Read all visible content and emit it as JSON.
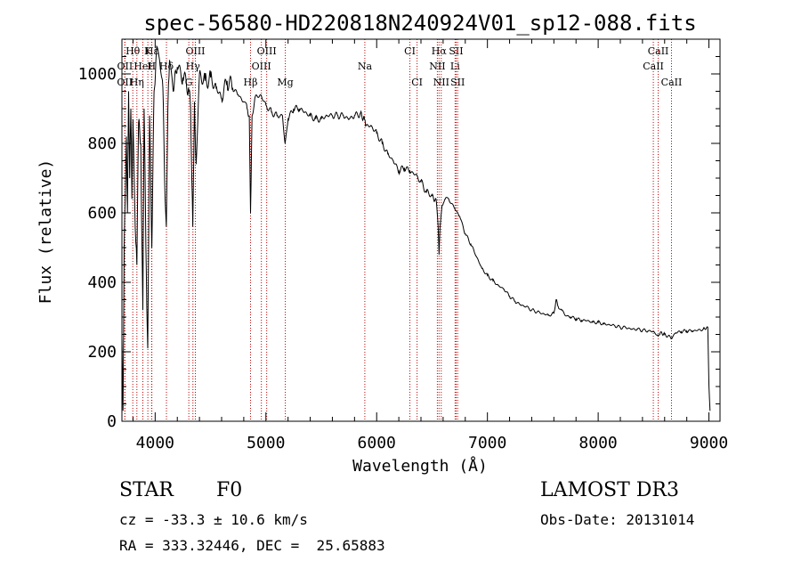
{
  "chart_data": {
    "type": "line",
    "title": "spec-56580-HD220818N240924V01_sp12-088.fits",
    "xlabel": "Wavelength (Å)",
    "ylabel": "Flux (relative)",
    "xlim": [
      3700,
      9100
    ],
    "ylim": [
      0,
      1100
    ],
    "xticks": [
      4000,
      5000,
      6000,
      7000,
      8000,
      9000
    ],
    "yticks": [
      0,
      200,
      400,
      600,
      800,
      1000
    ],
    "grid": false,
    "series": [
      {
        "name": "flux",
        "x": [
          3700,
          3710,
          3720,
          3730,
          3740,
          3750,
          3760,
          3770,
          3780,
          3790,
          3800,
          3820,
          3835,
          3850,
          3870,
          3889,
          3900,
          3920,
          3933,
          3950,
          3970,
          3990,
          4010,
          4040,
          4070,
          4090,
          4101,
          4115,
          4130,
          4160,
          4200,
          4250,
          4300,
          4320,
          4340,
          4355,
          4370,
          4400,
          4450,
          4500,
          4550,
          4600,
          4650,
          4700,
          4750,
          4800,
          4830,
          4850,
          4861,
          4875,
          4900,
          4950,
          5000,
          5050,
          5100,
          5150,
          5173,
          5200,
          5250,
          5300,
          5350,
          5400,
          5450,
          5500,
          5550,
          5600,
          5650,
          5700,
          5750,
          5800,
          5850,
          5890,
          5900,
          5950,
          6000,
          6050,
          6100,
          6150,
          6200,
          6250,
          6300,
          6350,
          6400,
          6450,
          6500,
          6540,
          6555,
          6563,
          6572,
          6590,
          6620,
          6650,
          6700,
          6750,
          6800,
          6850,
          6900,
          6950,
          7000,
          7050,
          7100,
          7150,
          7200,
          7250,
          7300,
          7350,
          7400,
          7450,
          7500,
          7550,
          7600,
          7620,
          7640,
          7670,
          7700,
          7750,
          7800,
          7850,
          7900,
          7950,
          8000,
          8050,
          8100,
          8150,
          8200,
          8250,
          8300,
          8350,
          8400,
          8450,
          8500,
          8540,
          8560,
          8600,
          8662,
          8700,
          8750,
          8800,
          8850,
          8900,
          8950,
          8990,
          9000,
          9010
        ],
        "values": [
          240,
          30,
          500,
          640,
          820,
          600,
          950,
          700,
          900,
          640,
          870,
          560,
          450,
          860,
          800,
          320,
          900,
          430,
          210,
          880,
          500,
          950,
          1060,
          1040,
          960,
          640,
          560,
          900,
          1040,
          960,
          1020,
          990,
          960,
          900,
          560,
          920,
          740,
          1000,
          980,
          990,
          960,
          930,
          980,
          960,
          940,
          920,
          900,
          880,
          600,
          880,
          930,
          940,
          910,
          890,
          880,
          880,
          800,
          870,
          900,
          900,
          890,
          880,
          870,
          870,
          880,
          880,
          880,
          880,
          870,
          880,
          885,
          870,
          850,
          850,
          830,
          800,
          770,
          750,
          720,
          730,
          720,
          710,
          690,
          660,
          650,
          630,
          560,
          480,
          560,
          620,
          640,
          640,
          615,
          590,
          540,
          510,
          475,
          440,
          420,
          405,
          390,
          380,
          360,
          345,
          335,
          330,
          320,
          315,
          310,
          305,
          310,
          350,
          330,
          320,
          305,
          300,
          295,
          290,
          290,
          285,
          285,
          280,
          278,
          275,
          270,
          270,
          265,
          265,
          262,
          260,
          258,
          245,
          255,
          250,
          240,
          255,
          258,
          260,
          260,
          262,
          265,
          270,
          100,
          30
        ]
      }
    ],
    "annotations": {
      "line_markers": [
        {
          "label": "Hθ",
          "x": 3798,
          "row": 1
        },
        {
          "label": "K",
          "x": 3934,
          "row": 1
        },
        {
          "label": "Hε",
          "x": 3970,
          "row": 1
        },
        {
          "label": "OIII",
          "x": 4363,
          "row": 1
        },
        {
          "label": "OIII",
          "x": 5007,
          "row": 1
        },
        {
          "label": "CI",
          "x": 6300,
          "row": 1
        },
        {
          "label": "Hα",
          "x": 6563,
          "row": 1
        },
        {
          "label": "SII",
          "x": 6717,
          "row": 1
        },
        {
          "label": "CaII",
          "x": 8542,
          "row": 1
        },
        {
          "label": "OII",
          "x": 3727,
          "row": 2
        },
        {
          "label": "HeI",
          "x": 3889,
          "row": 2
        },
        {
          "label": "H",
          "x": 3968,
          "row": 2
        },
        {
          "label": "Hδ",
          "x": 4102,
          "row": 2
        },
        {
          "label": "Hγ",
          "x": 4341,
          "row": 2
        },
        {
          "label": "OIII",
          "x": 4959,
          "row": 2
        },
        {
          "label": "Na",
          "x": 5893,
          "row": 2
        },
        {
          "label": "NII",
          "x": 6548,
          "row": 2
        },
        {
          "label": "Li",
          "x": 6708,
          "row": 2
        },
        {
          "label": "CaII",
          "x": 8498,
          "row": 2
        },
        {
          "label": "OII",
          "x": 3726,
          "row": 3
        },
        {
          "label": "Hη",
          "x": 3835,
          "row": 3
        },
        {
          "label": "G",
          "x": 4304,
          "row": 3
        },
        {
          "label": "Hβ",
          "x": 4861,
          "row": 3
        },
        {
          "label": "Mg",
          "x": 5175,
          "row": 3
        },
        {
          "label": "CI",
          "x": 6365,
          "row": 3
        },
        {
          "label": "NII",
          "x": 6583,
          "row": 3
        },
        {
          "label": "SII",
          "x": 6731,
          "row": 3
        },
        {
          "label": "CaII",
          "x": 8662,
          "row": 3
        }
      ]
    }
  },
  "info": {
    "object_class": "STAR",
    "subclass": "F0",
    "redshift_text": "cz = -33.3 ± 10.6 km/s",
    "coords_text": "RA = 333.32446, DEC =  25.65883",
    "survey": "LAMOST DR3",
    "obs_date": "Obs-Date: 20131014"
  }
}
